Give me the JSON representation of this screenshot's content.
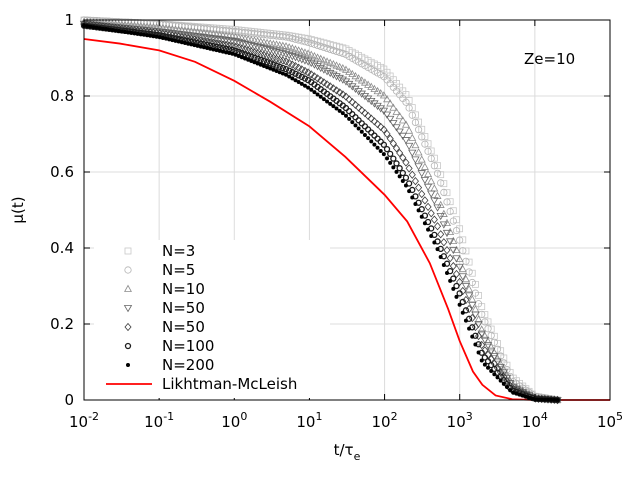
{
  "chart_data": {
    "type": "scatter",
    "x_scale": "log",
    "xlim": [
      0.01,
      100000
    ],
    "ylim": [
      0,
      1
    ],
    "xlabel_base": "t/τ",
    "xlabel_sub": "e",
    "ylabel": "μ(t)",
    "annotation": "Ze=10",
    "grid": true,
    "legend_position": "lower-left",
    "x_ticks": [
      {
        "value": 0.01,
        "base": "10",
        "exp": "-2"
      },
      {
        "value": 0.1,
        "base": "10",
        "exp": "-1"
      },
      {
        "value": 1,
        "base": "10",
        "exp": "0"
      },
      {
        "value": 10,
        "base": "10",
        "exp": "1"
      },
      {
        "value": 100,
        "base": "10",
        "exp": "2"
      },
      {
        "value": 1000,
        "base": "10",
        "exp": "3"
      },
      {
        "value": 10000,
        "base": "10",
        "exp": "4"
      },
      {
        "value": 100000,
        "base": "10",
        "exp": "5"
      }
    ],
    "y_ticks": [
      {
        "value": 0,
        "label": "0"
      },
      {
        "value": 0.2,
        "label": "0.2"
      },
      {
        "value": 0.4,
        "label": "0.4"
      },
      {
        "value": 0.6,
        "label": "0.6"
      },
      {
        "value": 0.8,
        "label": "0.8"
      },
      {
        "value": 1,
        "label": "1"
      }
    ],
    "series": [
      {
        "name": "N=3",
        "marker": "square",
        "color": "#c8c8c8",
        "x": [
          0.01,
          0.1,
          1,
          5,
          10,
          30,
          100,
          200,
          500,
          1000,
          2000,
          5000,
          10000,
          20000
        ],
        "y": [
          1.0,
          0.99,
          0.975,
          0.96,
          0.95,
          0.925,
          0.87,
          0.8,
          0.62,
          0.45,
          0.24,
          0.06,
          0.01,
          0.0
        ]
      },
      {
        "name": "N=5",
        "marker": "circle",
        "color": "#b4b4b4",
        "x": [
          0.01,
          0.1,
          1,
          5,
          10,
          30,
          100,
          200,
          500,
          1000,
          2000,
          5000,
          10000,
          20000
        ],
        "y": [
          1.0,
          0.99,
          0.97,
          0.955,
          0.94,
          0.91,
          0.85,
          0.78,
          0.6,
          0.42,
          0.22,
          0.05,
          0.01,
          0.0
        ]
      },
      {
        "name": "N=10",
        "marker": "triangle-up",
        "color": "#8c8c8c",
        "x": [
          0.01,
          0.1,
          1,
          5,
          10,
          30,
          100,
          200,
          500,
          1000,
          2000,
          5000,
          10000,
          20000
        ],
        "y": [
          0.995,
          0.98,
          0.955,
          0.93,
          0.91,
          0.87,
          0.8,
          0.72,
          0.54,
          0.37,
          0.18,
          0.04,
          0.005,
          0.0
        ]
      },
      {
        "name": "N=50",
        "marker": "triangle-down",
        "color": "#646464",
        "x": [
          0.01,
          0.1,
          1,
          5,
          10,
          30,
          100,
          200,
          500,
          1000,
          2000,
          5000,
          10000,
          20000
        ],
        "y": [
          0.99,
          0.97,
          0.945,
          0.91,
          0.89,
          0.84,
          0.76,
          0.68,
          0.51,
          0.35,
          0.17,
          0.035,
          0.005,
          0.0
        ]
      },
      {
        "name": "N=50",
        "marker": "diamond",
        "color": "#3c3c3c",
        "x": [
          0.01,
          0.1,
          1,
          5,
          10,
          30,
          100,
          200,
          500,
          1000,
          2000,
          5000,
          10000,
          20000
        ],
        "y": [
          0.99,
          0.965,
          0.93,
          0.89,
          0.86,
          0.8,
          0.71,
          0.62,
          0.46,
          0.31,
          0.14,
          0.03,
          0.004,
          0.0
        ]
      },
      {
        "name": "N=100",
        "marker": "circle-thick",
        "color": "#1e1e1e",
        "x": [
          0.01,
          0.1,
          1,
          5,
          10,
          30,
          100,
          200,
          500,
          1000,
          2000,
          5000,
          10000,
          20000
        ],
        "y": [
          0.985,
          0.96,
          0.92,
          0.87,
          0.84,
          0.77,
          0.67,
          0.58,
          0.42,
          0.28,
          0.12,
          0.025,
          0.003,
          0.0
        ]
      },
      {
        "name": "N=200",
        "marker": "dot",
        "color": "#000000",
        "x": [
          0.01,
          0.1,
          1,
          5,
          10,
          30,
          100,
          200,
          500,
          1000,
          2000,
          5000,
          10000,
          20000
        ],
        "y": [
          0.985,
          0.955,
          0.91,
          0.855,
          0.82,
          0.75,
          0.645,
          0.56,
          0.4,
          0.25,
          0.1,
          0.02,
          0.002,
          0.0
        ]
      }
    ],
    "curve": {
      "name": "Likhtman-McLeish",
      "color": "#ff0000",
      "x": [
        0.01,
        0.03,
        0.1,
        0.3,
        1,
        3,
        10,
        30,
        100,
        200,
        400,
        700,
        1000,
        1500,
        2000,
        3000,
        5000,
        10000,
        100000
      ],
      "y": [
        0.95,
        0.938,
        0.92,
        0.89,
        0.84,
        0.785,
        0.72,
        0.64,
        0.54,
        0.47,
        0.36,
        0.24,
        0.155,
        0.075,
        0.04,
        0.012,
        0.002,
        0.0,
        0.0
      ]
    }
  }
}
